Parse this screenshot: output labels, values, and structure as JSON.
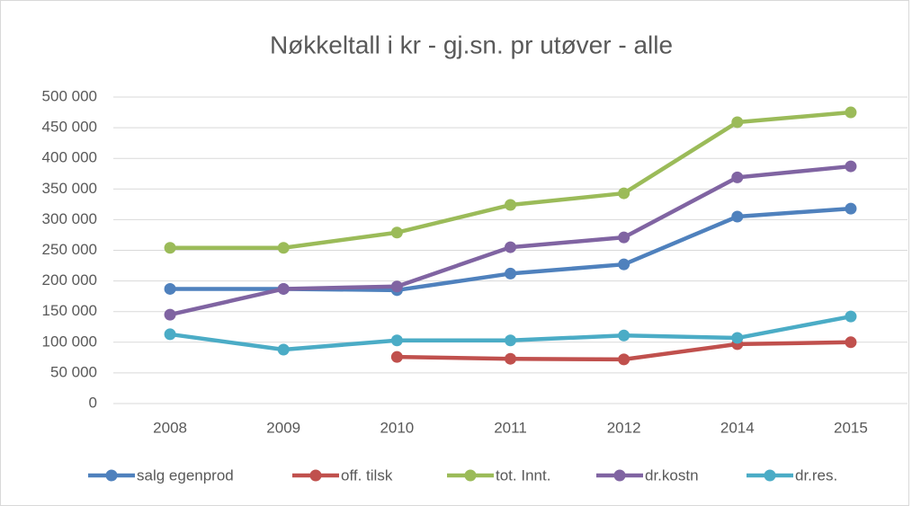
{
  "chart_data": {
    "type": "line",
    "title": "Nøkkeltall i kr - gj.sn. pr utøver - alle",
    "categories": [
      "2008",
      "2009",
      "2010",
      "2011",
      "2012",
      "2014",
      "2015"
    ],
    "series": [
      {
        "name": "salg egenprod",
        "color": "#4f81bd",
        "values": [
          187000,
          187000,
          185000,
          212000,
          227000,
          305000,
          318000
        ]
      },
      {
        "name": "off. tilsk",
        "color": "#c0504d",
        "values": [
          null,
          null,
          76000,
          73000,
          72000,
          97000,
          100000
        ]
      },
      {
        "name": "tot. Innt.",
        "color": "#9bbb59",
        "values": [
          254000,
          254000,
          279000,
          324000,
          343000,
          459000,
          475000
        ]
      },
      {
        "name": "dr.kostn",
        "color": "#8064a2",
        "values": [
          145000,
          187000,
          191000,
          255000,
          271000,
          369000,
          387000
        ]
      },
      {
        "name": "dr.res.",
        "color": "#4bacc6",
        "values": [
          113000,
          88000,
          103000,
          103000,
          111000,
          107000,
          142000
        ]
      }
    ],
    "ylim": [
      0,
      500000
    ],
    "yticks": [
      0,
      {
        "value": 50000,
        "label": "50 000"
      },
      {
        "value": 100000,
        "label": "100 000"
      },
      {
        "value": 150000,
        "label": "150 000"
      },
      {
        "value": 200000,
        "label": "200 000"
      },
      {
        "value": 250000,
        "label": "250 000"
      },
      {
        "value": 300000,
        "label": "300 000"
      },
      {
        "value": 350000,
        "label": "350 000"
      },
      {
        "value": 400000,
        "label": "400 000"
      },
      {
        "value": 450000,
        "label": "450 000"
      },
      {
        "value": 500000,
        "label": "500 000"
      }
    ],
    "grid": true,
    "legend": "bottom"
  }
}
